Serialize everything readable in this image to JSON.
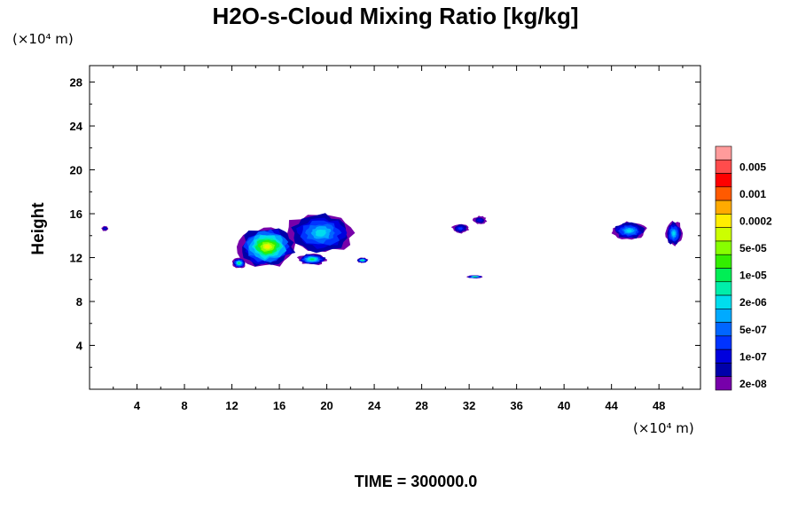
{
  "chart_data": {
    "type": "heatmap",
    "title": "H2O-s-Cloud Mixing Ratio [kg/kg]",
    "xlabel": "",
    "ylabel": "Height",
    "x_unit": "(×10⁴ m)",
    "y_unit": "(×10⁴ m)",
    "footer": "TIME = 300000.0",
    "xlim": [
      0,
      51.5
    ],
    "ylim": [
      0,
      29.5
    ],
    "xticks": [
      4,
      8,
      12,
      16,
      20,
      24,
      28,
      32,
      36,
      40,
      44,
      48
    ],
    "yticks": [
      4,
      8,
      12,
      16,
      20,
      24,
      28
    ],
    "grid": false,
    "colorbar": {
      "colors": [
        "#ff9b9b",
        "#ff4c4c",
        "#ff0000",
        "#ff5a00",
        "#ffaa00",
        "#ffee00",
        "#ccff00",
        "#88ff00",
        "#33ee00",
        "#00ee55",
        "#00eeaa",
        "#00ddee",
        "#00aaff",
        "#0066ff",
        "#0033ff",
        "#0000dd",
        "#0000aa",
        "#7700aa"
      ],
      "labels": [
        "0.005",
        "0.001",
        "0.0002",
        "5e-05",
        "1e-05",
        "2e-06",
        "5e-07",
        "1e-07",
        "2e-08"
      ],
      "label_index": [
        1,
        3,
        5,
        7,
        9,
        11,
        13,
        15,
        17
      ]
    },
    "cloud_regions": [
      {
        "x": [
          1.0,
          1.6
        ],
        "y": [
          14.4,
          14.9
        ],
        "peak": "1e-07",
        "color_index": 15
      },
      {
        "x": [
          12.5,
          17.5
        ],
        "y": [
          11.0,
          15.0
        ],
        "peak": "0.0002",
        "color_index": 5
      },
      {
        "x": [
          16.5,
          22.5
        ],
        "y": [
          12.2,
          16.3
        ],
        "peak": "2e-06",
        "color_index": 11
      },
      {
        "x": [
          12.0,
          13.2
        ],
        "y": [
          11.0,
          12.0
        ],
        "peak": "1e-05",
        "color_index": 9
      },
      {
        "x": [
          17.5,
          20.0
        ],
        "y": [
          11.3,
          12.4
        ],
        "peak": "1e-05",
        "color_index": 9
      },
      {
        "x": [
          22.5,
          23.5
        ],
        "y": [
          11.5,
          12.0
        ],
        "peak": "1e-05",
        "color_index": 9
      },
      {
        "x": [
          30.5,
          32.0
        ],
        "y": [
          14.2,
          15.1
        ],
        "peak": "1e-07",
        "color_index": 14
      },
      {
        "x": [
          32.3,
          33.5
        ],
        "y": [
          15.0,
          15.8
        ],
        "peak": "1e-07",
        "color_index": 15
      },
      {
        "x": [
          31.8,
          33.2
        ],
        "y": [
          10.1,
          10.4
        ],
        "peak": "1e-05",
        "color_index": 8
      },
      {
        "x": [
          44.0,
          47.0
        ],
        "y": [
          13.6,
          15.3
        ],
        "peak": "2e-06",
        "color_index": 11
      },
      {
        "x": [
          48.5,
          50.0
        ],
        "y": [
          13.0,
          15.4
        ],
        "peak": "2e-06",
        "color_index": 11
      }
    ]
  }
}
